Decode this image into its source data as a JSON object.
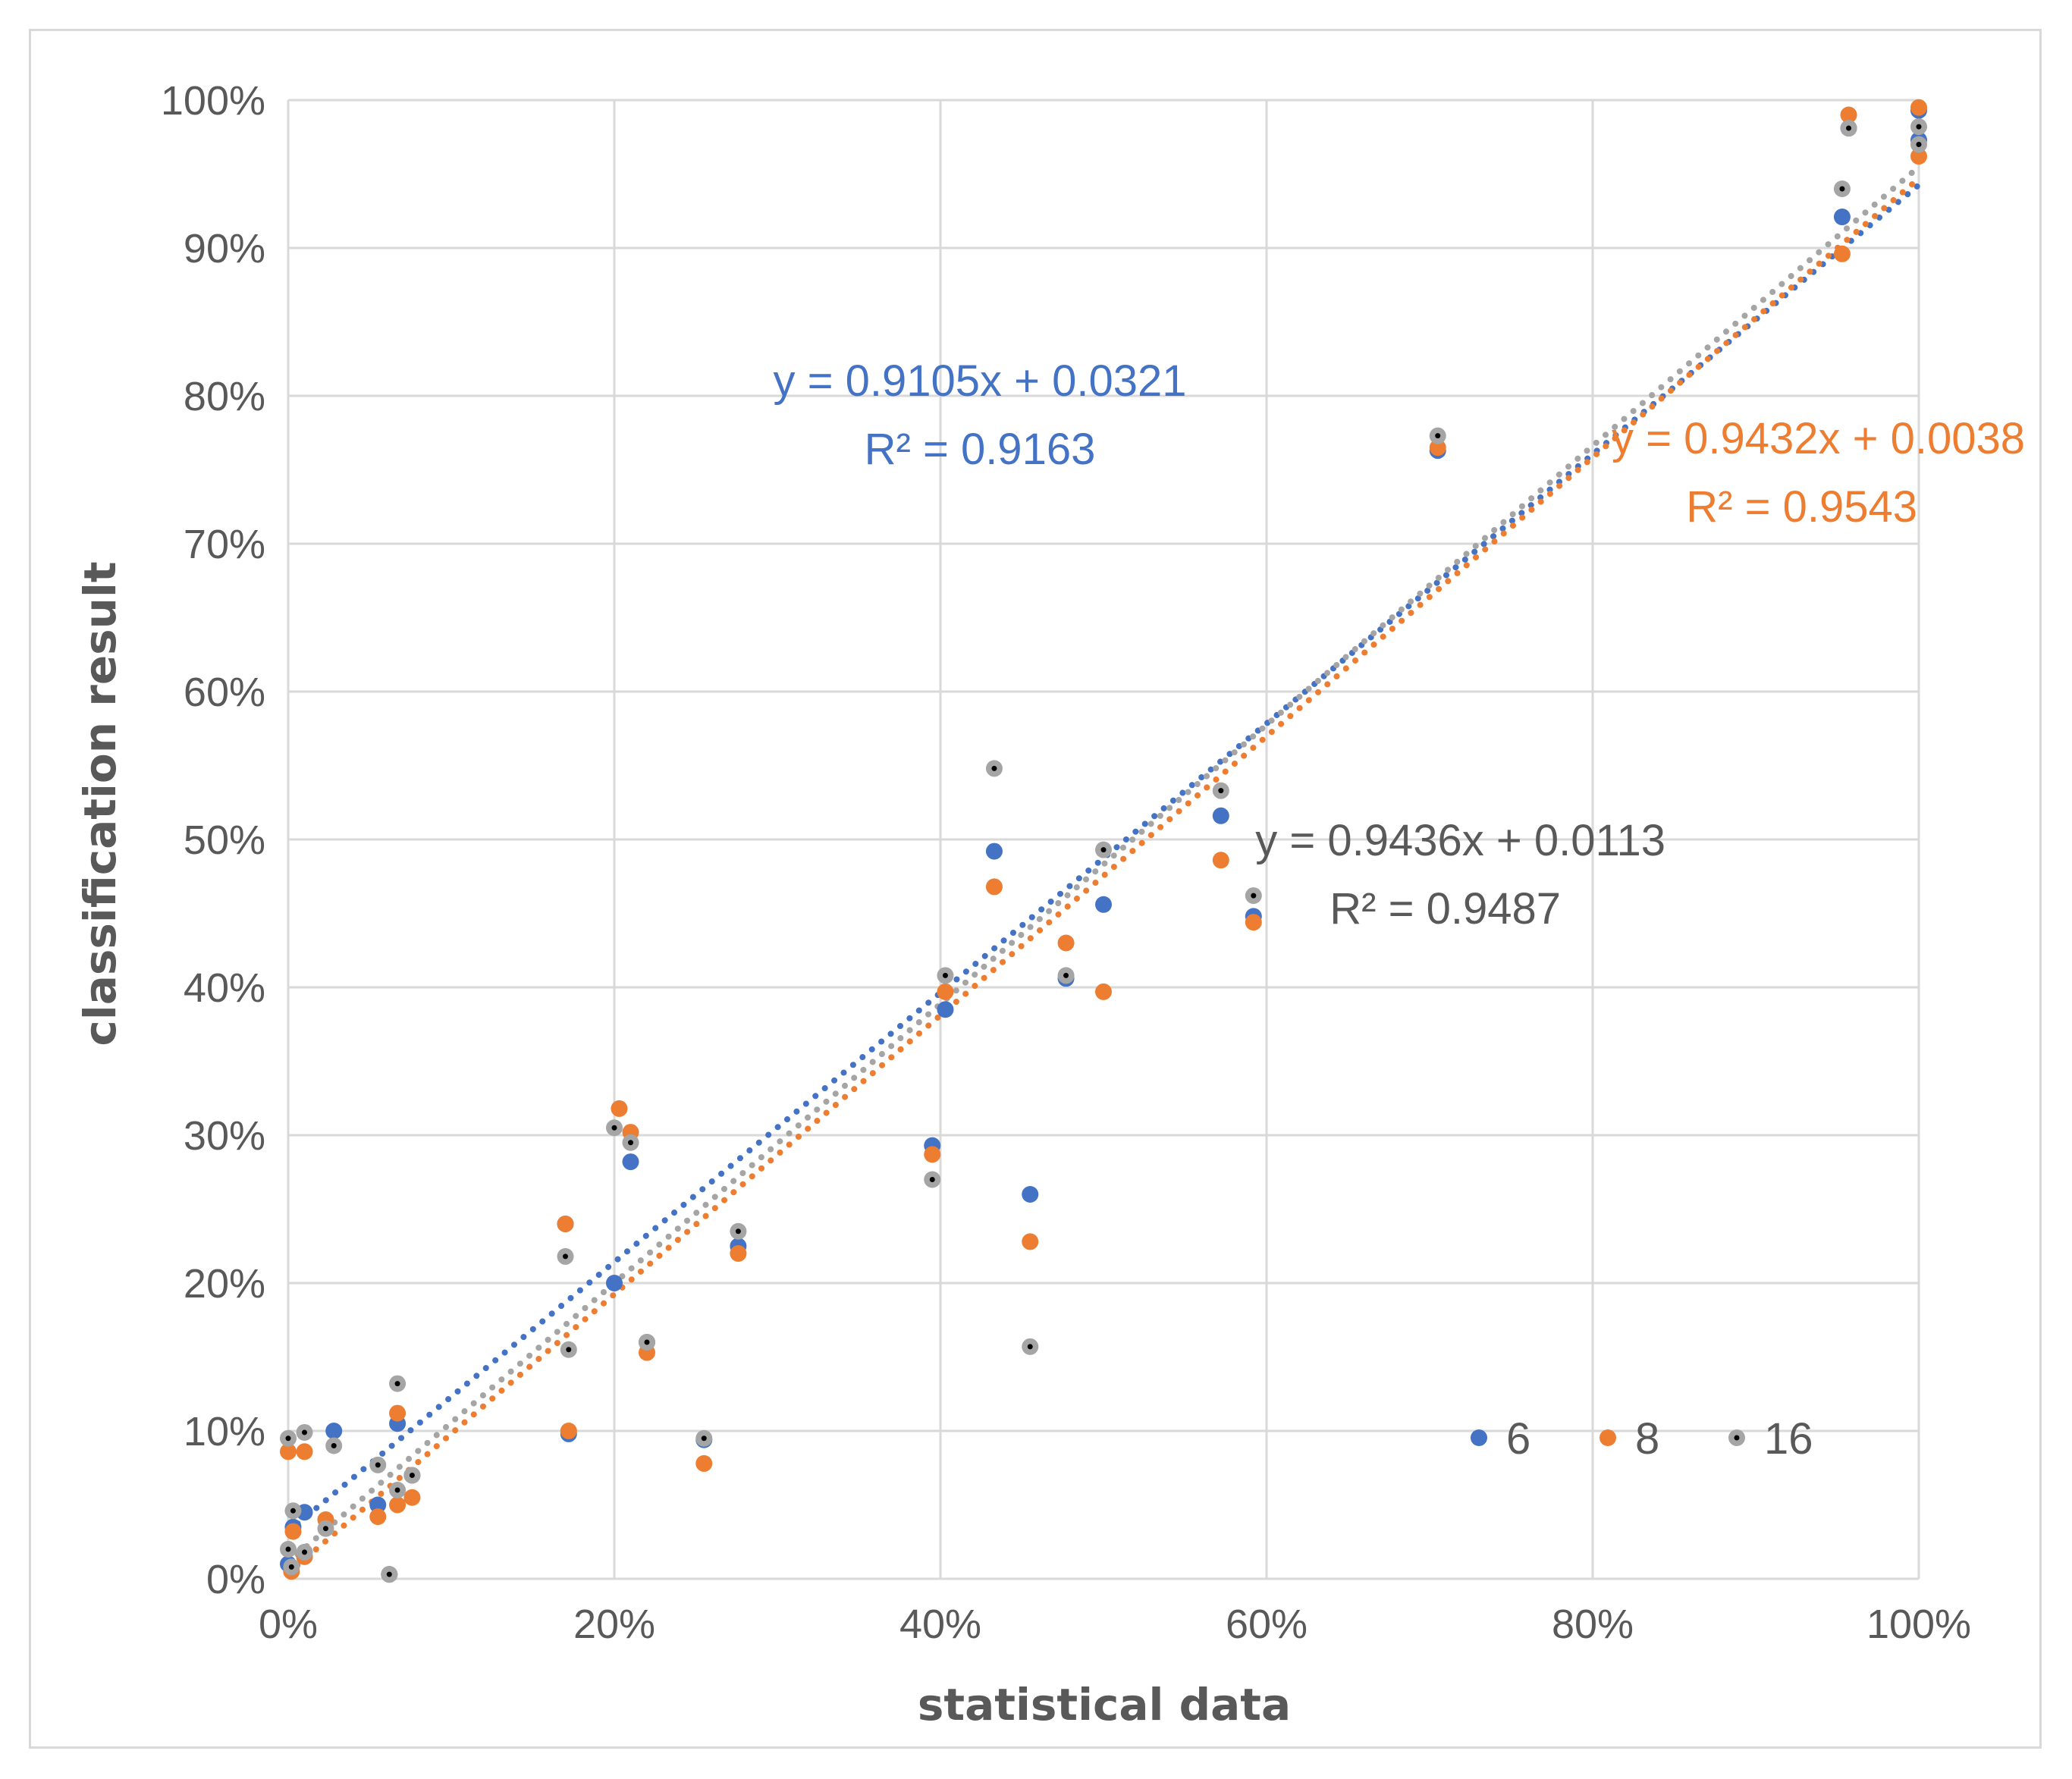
{
  "chart_data": {
    "type": "scatter",
    "xlabel": "statistical data",
    "ylabel": "classification result",
    "xlim": [
      0,
      1
    ],
    "ylim": [
      0,
      1
    ],
    "x_ticks": [
      0,
      0.2,
      0.4,
      0.6,
      0.8,
      1.0
    ],
    "y_ticks": [
      0,
      0.1,
      0.2,
      0.3,
      0.4,
      0.5,
      0.6,
      0.7,
      0.8,
      0.9,
      1.0
    ],
    "x_tick_labels": [
      "0%",
      "20%",
      "40%",
      "60%",
      "80%",
      "100%"
    ],
    "y_tick_labels": [
      "0%",
      "10%",
      "20%",
      "30%",
      "40%",
      "50%",
      "60%",
      "70%",
      "80%",
      "90%",
      "100%"
    ],
    "grid": true,
    "legend_position": "bottom-right",
    "series": [
      {
        "name": "6",
        "color": "#4472c4",
        "trendline": {
          "slope": 0.9105,
          "intercept": 0.0321,
          "equation": "y = 0.9105x + 0.0321",
          "r2": "R² = 0.9163"
        },
        "points": [
          [
            0.0,
            0.01
          ],
          [
            0.003,
            0.035
          ],
          [
            0.01,
            0.045
          ],
          [
            0.01,
            0.015
          ],
          [
            0.028,
            0.1
          ],
          [
            0.055,
            0.05
          ],
          [
            0.062,
            0.003
          ],
          [
            0.067,
            0.105
          ],
          [
            0.076,
            0.07
          ],
          [
            0.17,
            0.24
          ],
          [
            0.172,
            0.098
          ],
          [
            0.2,
            0.2
          ],
          [
            0.21,
            0.282
          ],
          [
            0.22,
            0.16
          ],
          [
            0.255,
            0.094
          ],
          [
            0.276,
            0.225
          ],
          [
            0.395,
            0.293
          ],
          [
            0.403,
            0.385
          ],
          [
            0.433,
            0.492
          ],
          [
            0.455,
            0.26
          ],
          [
            0.477,
            0.406
          ],
          [
            0.5,
            0.456
          ],
          [
            0.572,
            0.516
          ],
          [
            0.592,
            0.448
          ],
          [
            0.705,
            0.763
          ],
          [
            0.953,
            0.921
          ],
          [
            0.957,
            0.981
          ],
          [
            1.0,
            0.993
          ],
          [
            1.0,
            0.973
          ]
        ]
      },
      {
        "name": "8",
        "color": "#ed7d31",
        "trendline": {
          "slope": 0.9432,
          "intercept": 0.0038,
          "equation": "y = 0.9432x + 0.0038",
          "r2": "R² = 0.9543"
        },
        "points": [
          [
            0.0,
            0.086
          ],
          [
            0.002,
            0.005
          ],
          [
            0.003,
            0.032
          ],
          [
            0.01,
            0.086
          ],
          [
            0.01,
            0.015
          ],
          [
            0.023,
            0.04
          ],
          [
            0.055,
            0.042
          ],
          [
            0.062,
            0.003
          ],
          [
            0.067,
            0.112
          ],
          [
            0.067,
            0.05
          ],
          [
            0.076,
            0.055
          ],
          [
            0.17,
            0.24
          ],
          [
            0.172,
            0.1
          ],
          [
            0.203,
            0.318
          ],
          [
            0.21,
            0.302
          ],
          [
            0.22,
            0.153
          ],
          [
            0.255,
            0.078
          ],
          [
            0.276,
            0.22
          ],
          [
            0.395,
            0.287
          ],
          [
            0.403,
            0.397
          ],
          [
            0.433,
            0.468
          ],
          [
            0.455,
            0.228
          ],
          [
            0.477,
            0.43
          ],
          [
            0.5,
            0.397
          ],
          [
            0.572,
            0.486
          ],
          [
            0.592,
            0.444
          ],
          [
            0.705,
            0.765
          ],
          [
            0.953,
            0.896
          ],
          [
            0.957,
            0.99
          ],
          [
            1.0,
            0.995
          ],
          [
            1.0,
            0.962
          ]
        ]
      },
      {
        "name": "16",
        "color": "#a5a5a5",
        "trendline": {
          "slope": 0.9436,
          "intercept": 0.0113,
          "equation": "y = 0.9436x + 0.0113",
          "r2": "R² = 0.9487"
        },
        "points": [
          [
            0.0,
            0.095
          ],
          [
            0.0,
            0.02
          ],
          [
            0.002,
            0.008
          ],
          [
            0.003,
            0.046
          ],
          [
            0.01,
            0.099
          ],
          [
            0.01,
            0.018
          ],
          [
            0.023,
            0.034
          ],
          [
            0.028,
            0.09
          ],
          [
            0.055,
            0.077
          ],
          [
            0.062,
            0.003
          ],
          [
            0.067,
            0.132
          ],
          [
            0.067,
            0.06
          ],
          [
            0.076,
            0.07
          ],
          [
            0.17,
            0.218
          ],
          [
            0.172,
            0.155
          ],
          [
            0.2,
            0.305
          ],
          [
            0.21,
            0.295
          ],
          [
            0.22,
            0.16
          ],
          [
            0.255,
            0.095
          ],
          [
            0.276,
            0.235
          ],
          [
            0.395,
            0.27
          ],
          [
            0.403,
            0.408
          ],
          [
            0.433,
            0.548
          ],
          [
            0.455,
            0.157
          ],
          [
            0.477,
            0.408
          ],
          [
            0.5,
            0.493
          ],
          [
            0.572,
            0.533
          ],
          [
            0.592,
            0.462
          ],
          [
            0.705,
            0.773
          ],
          [
            0.953,
            0.94
          ],
          [
            0.957,
            0.981
          ],
          [
            1.0,
            0.982
          ],
          [
            1.0,
            0.97
          ]
        ]
      }
    ]
  }
}
